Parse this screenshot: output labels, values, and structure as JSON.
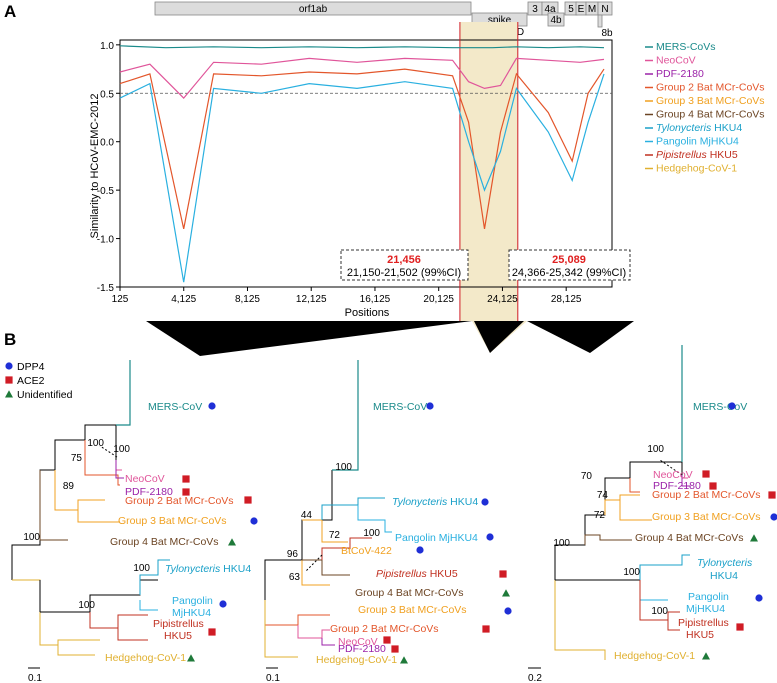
{
  "panel_a": {
    "label": "A",
    "genome": [
      {
        "name": "orf1ab"
      },
      {
        "name": "spike"
      },
      {
        "name": "3"
      },
      {
        "name": "4a"
      },
      {
        "name": "4b"
      },
      {
        "name": "5"
      },
      {
        "name": "E"
      },
      {
        "name": "M"
      },
      {
        "name": "N"
      },
      {
        "name": "8b"
      },
      {
        "name": "RBD"
      }
    ],
    "legend": [
      {
        "name": "MERS-CoVs",
        "color": "#1a8a8a"
      },
      {
        "name": "NeoCoV",
        "color": "#e0559a"
      },
      {
        "name": "PDF-2180",
        "color": "#9b22a8"
      },
      {
        "name": "Group 2 Bat MCr-CoVs",
        "color": "#e3562b"
      },
      {
        "name": "Group 3 Bat MCr-CoVs",
        "color": "#f0a020"
      },
      {
        "name": "Group 4 Bat MCr-CoVs",
        "color": "#6b4423"
      },
      {
        "name": "HKU4",
        "italic": "Tylonycteris",
        "color": "#1aa0c8"
      },
      {
        "name": "Pangolin MjHKU4",
        "color": "#2ab0e0"
      },
      {
        "name": "HKU5",
        "italic": "Pipistrellus",
        "color": "#c03020"
      },
      {
        "name": "Hedgehog-CoV-1",
        "color": "#e0b030"
      }
    ],
    "breakpoint_left": {
      "pos": "21,456",
      "ci": "21,150-21,502 (99%CI)"
    },
    "breakpoint_right": {
      "pos": "25,089",
      "ci": "24,366-25,342 (99%CI)"
    }
  },
  "chart_data": {
    "type": "line",
    "title": "",
    "xlabel": "Positions",
    "ylabel": "Similarity to HCoV-EMC-2012",
    "xticks": [
      "125",
      "4,125",
      "8,125",
      "12,125",
      "16,125",
      "20,125",
      "24,125",
      "28,125"
    ],
    "xtick_values": [
      125,
      4125,
      8125,
      12125,
      16125,
      20125,
      24125,
      28125
    ],
    "yticks": [
      "1.0",
      "0.5",
      "0.0",
      "-0.5",
      "-1.0",
      "-1.5"
    ],
    "ytick_values": [
      1.0,
      0.5,
      0.0,
      -0.5,
      -1.0,
      -1.5
    ],
    "xlim": [
      125,
      31000
    ],
    "ylim": [
      -1.5,
      1.05
    ],
    "reference_line": 0.5,
    "highlight_region": [
      21456,
      25089
    ],
    "series_note": "Similarity scan curves; approximate shape",
    "series": [
      {
        "name": "MERS-CoVs",
        "x": [
          125,
          3000,
          6000,
          9000,
          12000,
          15000,
          18000,
          21000,
          22000,
          23500,
          25000,
          27000,
          29000,
          30500
        ],
        "y": [
          0.99,
          0.97,
          0.98,
          0.97,
          0.98,
          0.97,
          0.98,
          0.97,
          0.97,
          0.97,
          0.98,
          0.97,
          0.98,
          0.97
        ]
      },
      {
        "name": "NeoCoV",
        "x": [
          125,
          2000,
          4125,
          6000,
          9000,
          12000,
          15000,
          18000,
          21000,
          22000,
          23000,
          24000,
          25000,
          27000,
          29000,
          30500
        ],
        "y": [
          0.72,
          0.8,
          0.45,
          0.82,
          0.8,
          0.86,
          0.82,
          0.86,
          0.84,
          0.62,
          0.55,
          0.58,
          0.86,
          0.84,
          0.82,
          0.85
        ]
      },
      {
        "name": "Group 2 Bat MCr-CoVs",
        "x": [
          125,
          2000,
          4125,
          6000,
          9000,
          12000,
          15000,
          18000,
          21000,
          22000,
          23000,
          24000,
          25000,
          27000,
          28500,
          29500,
          30500
        ],
        "y": [
          0.6,
          0.7,
          -0.9,
          0.7,
          0.68,
          0.72,
          0.7,
          0.75,
          0.68,
          0.2,
          -0.9,
          0.1,
          0.7,
          0.3,
          -0.2,
          0.5,
          0.75
        ]
      },
      {
        "name": "Pangolin MjHKU4",
        "x": [
          125,
          2000,
          4125,
          6000,
          9000,
          12000,
          15000,
          18000,
          21000,
          22000,
          23000,
          24000,
          25000,
          27000,
          28500,
          29500,
          30500
        ],
        "y": [
          0.45,
          0.6,
          -1.45,
          0.55,
          0.5,
          0.6,
          0.55,
          0.62,
          0.55,
          0.0,
          -0.5,
          -0.1,
          0.55,
          0.1,
          -0.4,
          0.2,
          0.7
        ]
      }
    ]
  },
  "panel_b": {
    "label": "B",
    "legend": [
      {
        "name": "DPP4",
        "color": "#1f2fd6"
      },
      {
        "name": "ACE2",
        "color": "#d01c25"
      },
      {
        "name": "Unidentified",
        "color": "#1f7a3a"
      }
    ],
    "trees": [
      {
        "scale": "0.1",
        "boot": [
          "100",
          "100",
          "75",
          "89",
          "100",
          "100",
          "100"
        ],
        "tips": [
          {
            "text": "MERS-CoV",
            "color": "#1a8a8a",
            "mark": "DPP4"
          },
          {
            "text": "NeoCoV",
            "color": "#e0559a",
            "mark": "ACE2"
          },
          {
            "text": "PDF-2180",
            "color": "#9b22a8",
            "mark": "ACE2"
          },
          {
            "text": "Group 2 Bat MCr-CoVs",
            "color": "#e3562b",
            "mark": "ACE2"
          },
          {
            "text": "Group 3 Bat MCr-CoVs",
            "color": "#f0a020",
            "mark": "DPP4"
          },
          {
            "text": "Group 4 Bat MCr-CoVs",
            "color": "#6b4423",
            "mark": "Unidentified"
          },
          {
            "italic": "Tylonycteris",
            "text": "HKU4",
            "color": "#1aa0c8",
            "mark": ""
          },
          {
            "text": "Pangolin",
            "text2": "MjHKU4",
            "color": "#2ab0e0",
            "mark": "DPP4"
          },
          {
            "italic": "Pipistrellus",
            "text": "HKU5",
            "color": "#c03020",
            "mark": "ACE2"
          },
          {
            "text": "Hedgehog-CoV-1",
            "color": "#e0b030",
            "mark": "Unidentified"
          }
        ]
      },
      {
        "scale": "0.1",
        "boot": [
          "100",
          "44",
          "72",
          "96",
          "63",
          "100"
        ],
        "tips": [
          {
            "text": "MERS-CoV",
            "color": "#1a8a8a",
            "mark": "DPP4"
          },
          {
            "italic": "Tylonycteris",
            "text": "HKU4",
            "color": "#1aa0c8",
            "mark": "DPP4"
          },
          {
            "text": "Pangolin MjHKU4",
            "color": "#2ab0e0",
            "mark": "DPP4"
          },
          {
            "text": "BtCoV-422",
            "color": "#f0a020",
            "mark": "DPP4"
          },
          {
            "italic": "Pipistrellus",
            "text": "HKU5",
            "color": "#c03020",
            "mark": "ACE2"
          },
          {
            "text": "Group 4 Bat MCr-CoVs",
            "color": "#6b4423",
            "mark": "Unidentified"
          },
          {
            "text": "Group 3 Bat MCr-CoVs",
            "color": "#f0a020",
            "mark": "DPP4"
          },
          {
            "text": "Group 2 Bat MCr-CoVs",
            "color": "#e3562b",
            "mark": "ACE2"
          },
          {
            "text": "NeoCoV",
            "color": "#e0559a",
            "mark": "ACE2"
          },
          {
            "text": "PDF-2180",
            "color": "#9b22a8",
            "mark": "ACE2"
          },
          {
            "text": "Hedgehog-CoV-1",
            "color": "#e0b030",
            "mark": "Unidentified"
          }
        ]
      },
      {
        "scale": "0.2",
        "boot": [
          "100",
          "70",
          "74",
          "72",
          "100",
          "100",
          "100"
        ],
        "tips": [
          {
            "text": "MERS-CoV",
            "color": "#1a8a8a",
            "mark": "DPP4"
          },
          {
            "text": "NeoCoV",
            "color": "#e0559a",
            "mark": "ACE2"
          },
          {
            "text": "PDF-2180",
            "color": "#9b22a8",
            "mark": "ACE2"
          },
          {
            "text": "Group 2 Bat MCr-CoVs",
            "color": "#e3562b",
            "mark": "ACE2"
          },
          {
            "text": "Group 3 Bat MCr-CoVs",
            "color": "#f0a020",
            "mark": "DPP4"
          },
          {
            "text": "Group 4 Bat MCr-CoVs",
            "color": "#6b4423",
            "mark": "Unidentified"
          },
          {
            "italic": "Tylonycteris",
            "text": "HKU4",
            "color": "#1aa0c8",
            "mark": ""
          },
          {
            "text": "Pangolin",
            "text2": "MjHKU4",
            "color": "#2ab0e0",
            "mark": "DPP4"
          },
          {
            "italic": "Pipistrellus",
            "text": "HKU5",
            "color": "#c03020",
            "mark": "ACE2"
          },
          {
            "text": "Hedgehog-CoV-1",
            "color": "#e0b030",
            "mark": "Unidentified"
          }
        ]
      }
    ]
  }
}
